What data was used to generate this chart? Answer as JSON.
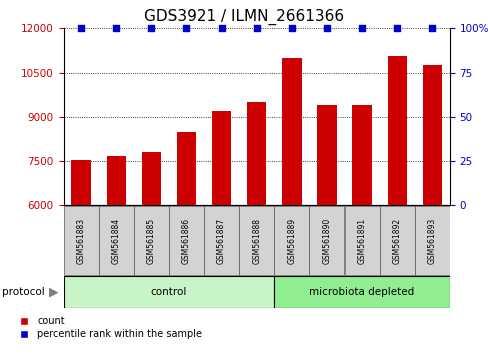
{
  "title": "GDS3921 / ILMN_2661366",
  "samples": [
    "GSM561883",
    "GSM561884",
    "GSM561885",
    "GSM561886",
    "GSM561887",
    "GSM561888",
    "GSM561889",
    "GSM561890",
    "GSM561891",
    "GSM561892",
    "GSM561893"
  ],
  "counts": [
    7520,
    7680,
    7800,
    8500,
    9200,
    9500,
    11000,
    9400,
    9400,
    11050,
    10750
  ],
  "percentile_ranks": [
    100,
    100,
    100,
    100,
    100,
    100,
    100,
    100,
    100,
    100,
    100
  ],
  "bar_color": "#cc0000",
  "dot_color": "#0000cc",
  "ylim_left": [
    6000,
    12000
  ],
  "yticks_left": [
    6000,
    7500,
    9000,
    10500,
    12000
  ],
  "ylim_right": [
    0,
    100
  ],
  "yticks_right": [
    0,
    25,
    50,
    75,
    100
  ],
  "ytick_right_labels": [
    "0",
    "25",
    "50",
    "75",
    "100%"
  ],
  "ylabel_left_color": "#cc0000",
  "ylabel_right_color": "#0000cc",
  "sample_box_color": "#d3d3d3",
  "ctrl_color": "#c8f5c8",
  "micro_color": "#90ee90",
  "title_fontsize": 11,
  "tick_fontsize": 7.5,
  "bar_width": 0.55,
  "n_control": 6
}
